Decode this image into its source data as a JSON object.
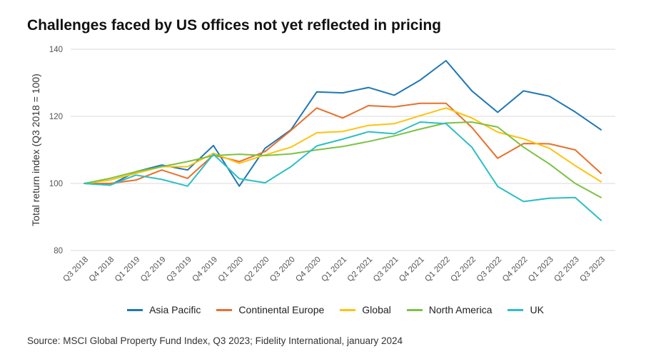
{
  "title": "Challenges faced by US offices not yet reflected in pricing",
  "source": "Source: MSCI Global Property Fund Index, Q3 2023; Fidelity International, january 2024",
  "chart_data": {
    "type": "line",
    "title": "Challenges faced by US offices not yet reflected in pricing",
    "xlabel": "",
    "ylabel": "Total return index (Q3 2018 = 100)",
    "ylim": [
      80,
      140
    ],
    "yticks": [
      80,
      100,
      120,
      140
    ],
    "grid": true,
    "legend_position": "bottom",
    "categories": [
      "Q3 2018",
      "Q4 2018",
      "Q1 2019",
      "Q2 2019",
      "Q3 2019",
      "Q4 2019",
      "Q1 2020",
      "Q2 2020",
      "Q3 2020",
      "Q4 2020",
      "Q1 2021",
      "Q2 2021",
      "Q3 2021",
      "Q4 2021",
      "Q1 2022",
      "Q2 2022",
      "Q3 2022",
      "Q4 2022",
      "Q1 2023",
      "Q2 2023",
      "Q3 2023"
    ],
    "series": [
      {
        "name": "Asia Pacific",
        "color": "#1f77b4",
        "values": [
          100,
          99.5,
          103.5,
          105.5,
          104.0,
          111.3,
          99.2,
          110.5,
          116.0,
          127.3,
          127.0,
          128.6,
          126.3,
          130.8,
          136.6,
          127.6,
          121.2,
          127.6,
          126.0,
          121.3,
          116.0
        ]
      },
      {
        "name": "Continental Europe",
        "color": "#e8702a",
        "values": [
          100,
          100.0,
          101.0,
          104.0,
          101.5,
          108.5,
          106.5,
          109.5,
          115.8,
          122.5,
          119.5,
          123.2,
          122.8,
          123.9,
          123.9,
          116.7,
          107.5,
          111.9,
          111.8,
          110.0,
          103.0
        ]
      },
      {
        "name": "Global",
        "color": "#ffc20e",
        "values": [
          100,
          101.0,
          103.0,
          105.0,
          105.0,
          109.0,
          106.0,
          108.5,
          110.8,
          115.1,
          115.5,
          117.3,
          117.8,
          120.2,
          122.5,
          119.5,
          115.3,
          113.3,
          110.5,
          105.3,
          100.5
        ]
      },
      {
        "name": "North America",
        "color": "#7cc242",
        "values": [
          100,
          101.5,
          103.5,
          105.0,
          106.5,
          108.3,
          108.7,
          108.3,
          108.8,
          110.0,
          111.0,
          112.5,
          114.2,
          116.2,
          118.0,
          118.3,
          116.8,
          110.8,
          105.8,
          100.0,
          95.8
        ]
      },
      {
        "name": "UK",
        "color": "#2bbfc4",
        "values": [
          100,
          99.5,
          102.5,
          101.2,
          99.2,
          108.7,
          101.4,
          100.2,
          105.0,
          111.2,
          113.2,
          115.4,
          114.8,
          118.3,
          117.8,
          110.8,
          99.1,
          94.6,
          95.6,
          95.8,
          89.0
        ]
      }
    ]
  }
}
